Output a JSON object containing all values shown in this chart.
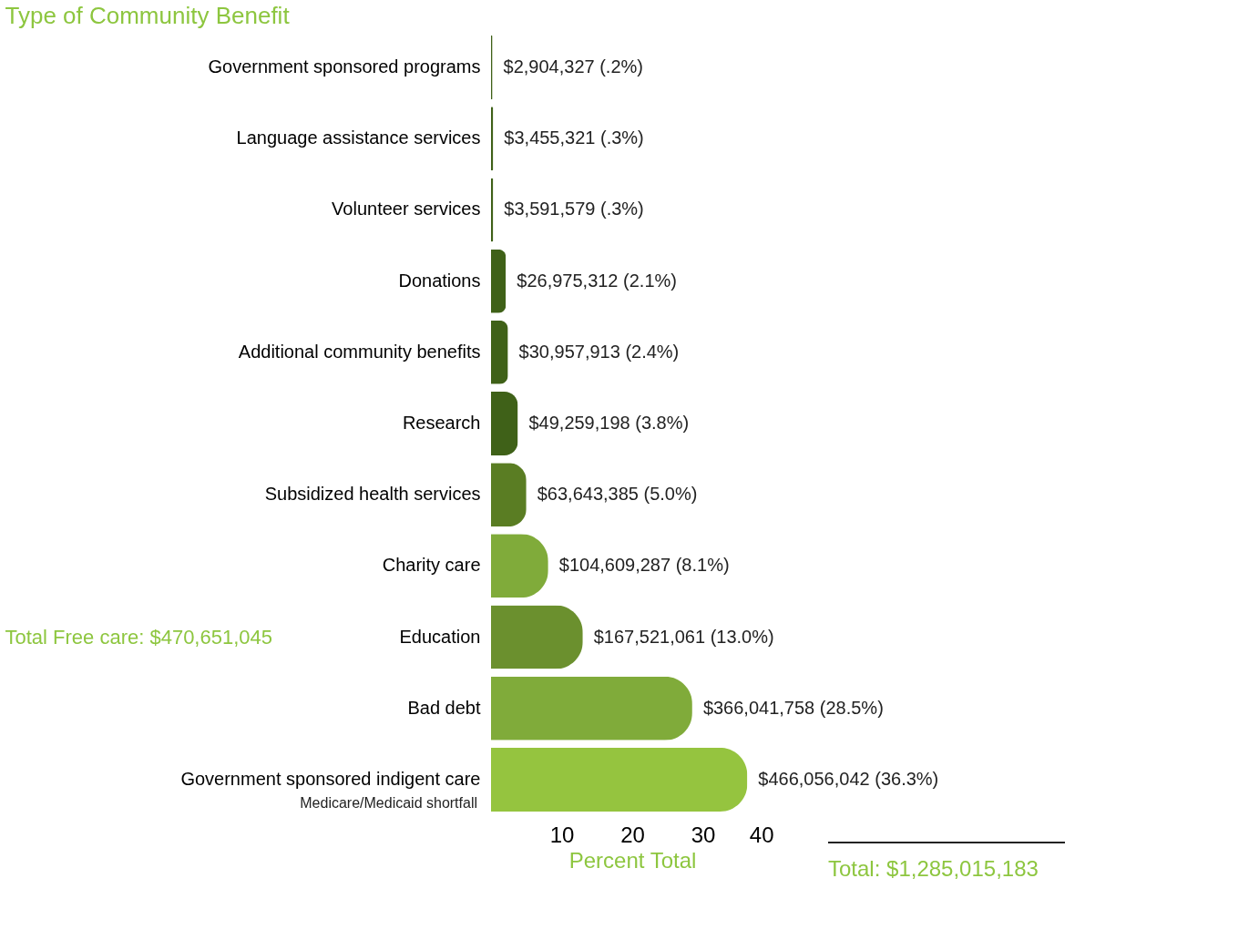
{
  "chart_data": {
    "type": "bar",
    "orientation": "horizontal",
    "title": "Type of Community Benefit",
    "xlabel": "Percent Total",
    "categories": [
      "Government sponsored programs",
      "Language assistance services",
      "Volunteer services",
      "Donations",
      "Additional community benefits",
      "Research",
      "Subsidized health services",
      "Charity care",
      "Education",
      "Bad debt",
      "Government sponsored indigent care"
    ],
    "values": [
      0.2,
      0.3,
      0.3,
      2.1,
      2.4,
      3.8,
      5.0,
      8.1,
      13.0,
      28.5,
      36.3
    ],
    "colors": [
      "#3f6118",
      "#3f6118",
      "#3f6118",
      "#3f6118",
      "#3f6118",
      "#3f6118",
      "#5a7d23",
      "#80ab3a",
      "#6b902e",
      "#80ab3a",
      "#95c43f"
    ],
    "value_labels": [
      "$2,904,327  (.2%)",
      "$3,455,321  (.3%)",
      "$3,591,579   (.3%)",
      "$26,975,312  (2.1%)",
      "$30,957,913  (2.4%)",
      "$49,259,198  (3.8%)",
      "$63,643,385   (5.0%)",
      "$104,609,287  (8.1%)",
      "$167,521,061  (13.0%)",
      "$366,041,758  (28.5%)",
      "$466,056,042  (36.3%)"
    ],
    "xlim": [
      0,
      40
    ],
    "xticks": [
      10,
      20,
      30,
      40
    ],
    "grid": false,
    "annotations": [
      "Medicare/Medicaid shortfall",
      "Total Free care: $470,651,045",
      "Total: $1,285,015,183"
    ]
  }
}
